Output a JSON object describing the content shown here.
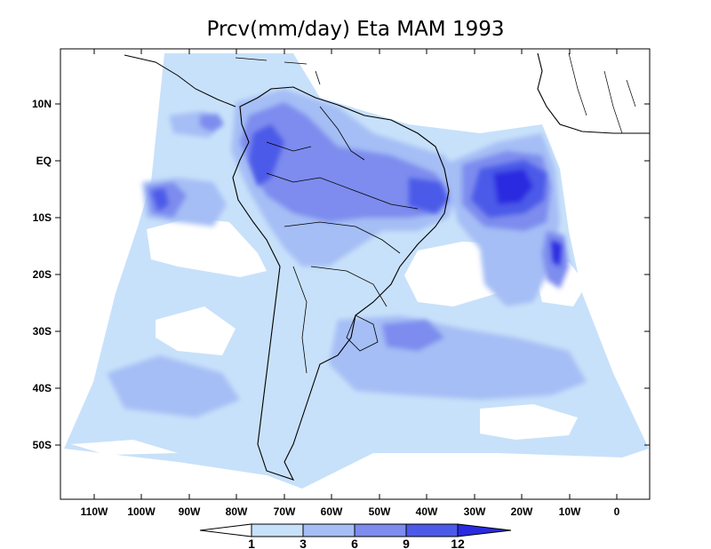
{
  "title": "Prcv(mm/day) Eta MAM 1993",
  "axes": {
    "lat_labels": [
      "10N",
      "EQ",
      "10S",
      "20S",
      "30S",
      "40S",
      "50S"
    ],
    "lon_labels": [
      "110W",
      "100W",
      "90W",
      "80W",
      "70W",
      "60W",
      "50W",
      "40W",
      "30W",
      "20W",
      "10W",
      "0"
    ]
  },
  "colorbar": {
    "levels": [
      "1",
      "3",
      "6",
      "9",
      "12"
    ],
    "colors": [
      "#ffffff",
      "#c8e1fa",
      "#a5bef5",
      "#7d8cee",
      "#4b5ae8",
      "#2a2ae0"
    ]
  },
  "colors": {
    "land_border": "#000000",
    "shade_1": "#c8e1fa",
    "shade_3": "#a5bef5",
    "shade_6": "#7d8cee",
    "shade_9": "#4b5ae8",
    "shade_12": "#2a2ae0"
  }
}
